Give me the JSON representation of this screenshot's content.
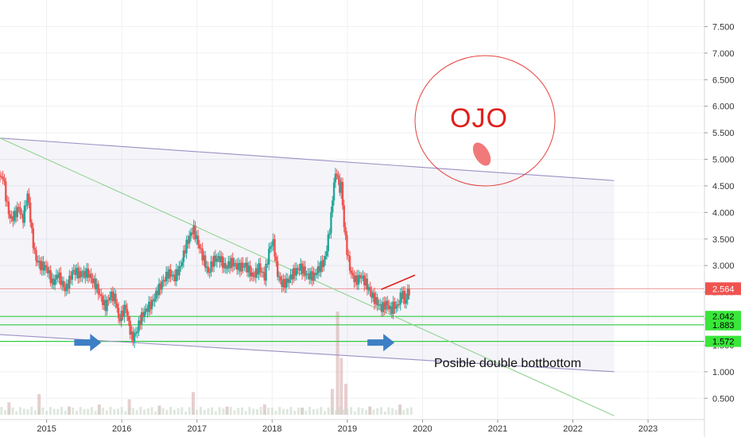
{
  "chart_data": {
    "type": "candlestick",
    "title": "",
    "xlabel": "",
    "ylabel": "",
    "x_tick_labels": [
      "2015",
      "2016",
      "2017",
      "2018",
      "2019",
      "2020",
      "2021",
      "2022",
      "2023"
    ],
    "y_tick_labels": [
      "0.500",
      "1.000",
      "1.500",
      "2.000",
      "2.500",
      "3.000",
      "3.500",
      "4.000",
      "4.500",
      "5.000",
      "5.500",
      "6.000",
      "6.500",
      "7.000",
      "7.500"
    ],
    "y_ticks": [
      0.5,
      1.0,
      1.5,
      2.0,
      2.5,
      3.0,
      3.5,
      4.0,
      4.5,
      5.0,
      5.5,
      6.0,
      6.5,
      7.0,
      7.5
    ],
    "x_range": [
      2014.38,
      2023.75
    ],
    "ylim": [
      0.1,
      8.0
    ],
    "grid": true,
    "price_points": [
      {
        "t": 2014.38,
        "v": 4.7
      },
      {
        "t": 2014.42,
        "v": 4.75
      },
      {
        "t": 2014.47,
        "v": 4.2
      },
      {
        "t": 2014.52,
        "v": 3.85
      },
      {
        "t": 2014.58,
        "v": 3.9
      },
      {
        "t": 2014.63,
        "v": 4.05
      },
      {
        "t": 2014.68,
        "v": 3.8
      },
      {
        "t": 2014.75,
        "v": 4.4
      },
      {
        "t": 2014.8,
        "v": 3.7
      },
      {
        "t": 2014.85,
        "v": 3.2
      },
      {
        "t": 2014.92,
        "v": 3.0
      },
      {
        "t": 2015.0,
        "v": 2.9
      },
      {
        "t": 2015.08,
        "v": 2.6
      },
      {
        "t": 2015.15,
        "v": 2.85
      },
      {
        "t": 2015.25,
        "v": 2.6
      },
      {
        "t": 2015.35,
        "v": 2.9
      },
      {
        "t": 2015.45,
        "v": 2.75
      },
      {
        "t": 2015.55,
        "v": 2.85
      },
      {
        "t": 2015.65,
        "v": 2.7
      },
      {
        "t": 2015.72,
        "v": 2.45
      },
      {
        "t": 2015.78,
        "v": 2.2
      },
      {
        "t": 2015.85,
        "v": 2.4
      },
      {
        "t": 2015.92,
        "v": 2.3
      },
      {
        "t": 2015.96,
        "v": 1.95
      },
      {
        "t": 2016.0,
        "v": 2.1
      },
      {
        "t": 2016.05,
        "v": 2.3
      },
      {
        "t": 2016.1,
        "v": 1.9
      },
      {
        "t": 2016.14,
        "v": 1.65
      },
      {
        "t": 2016.2,
        "v": 1.75
      },
      {
        "t": 2016.25,
        "v": 1.95
      },
      {
        "t": 2016.32,
        "v": 2.1
      },
      {
        "t": 2016.4,
        "v": 2.3
      },
      {
        "t": 2016.48,
        "v": 2.6
      },
      {
        "t": 2016.55,
        "v": 2.75
      },
      {
        "t": 2016.62,
        "v": 2.85
      },
      {
        "t": 2016.7,
        "v": 2.7
      },
      {
        "t": 2016.78,
        "v": 2.95
      },
      {
        "t": 2016.85,
        "v": 3.4
      },
      {
        "t": 2016.9,
        "v": 3.6
      },
      {
        "t": 2016.95,
        "v": 3.75
      },
      {
        "t": 2017.0,
        "v": 3.5
      },
      {
        "t": 2017.08,
        "v": 3.1
      },
      {
        "t": 2017.15,
        "v": 2.8
      },
      {
        "t": 2017.22,
        "v": 3.1
      },
      {
        "t": 2017.3,
        "v": 3.2
      },
      {
        "t": 2017.38,
        "v": 3.0
      },
      {
        "t": 2017.45,
        "v": 3.05
      },
      {
        "t": 2017.55,
        "v": 2.9
      },
      {
        "t": 2017.65,
        "v": 3.0
      },
      {
        "t": 2017.75,
        "v": 2.85
      },
      {
        "t": 2017.82,
        "v": 3.0
      },
      {
        "t": 2017.9,
        "v": 2.75
      },
      {
        "t": 2017.97,
        "v": 3.3
      },
      {
        "t": 2018.02,
        "v": 3.4
      },
      {
        "t": 2018.06,
        "v": 2.9
      },
      {
        "t": 2018.12,
        "v": 2.7
      },
      {
        "t": 2018.2,
        "v": 2.75
      },
      {
        "t": 2018.28,
        "v": 2.85
      },
      {
        "t": 2018.38,
        "v": 2.9
      },
      {
        "t": 2018.46,
        "v": 2.8
      },
      {
        "t": 2018.55,
        "v": 2.85
      },
      {
        "t": 2018.62,
        "v": 3.0
      },
      {
        "t": 2018.7,
        "v": 3.1
      },
      {
        "t": 2018.74,
        "v": 3.4
      },
      {
        "t": 2018.78,
        "v": 3.8
      },
      {
        "t": 2018.82,
        "v": 4.5
      },
      {
        "t": 2018.86,
        "v": 4.75
      },
      {
        "t": 2018.89,
        "v": 4.4
      },
      {
        "t": 2018.92,
        "v": 4.55
      },
      {
        "t": 2018.95,
        "v": 3.9
      },
      {
        "t": 2018.98,
        "v": 3.5
      },
      {
        "t": 2019.02,
        "v": 3.1
      },
      {
        "t": 2019.06,
        "v": 2.85
      },
      {
        "t": 2019.12,
        "v": 2.7
      },
      {
        "t": 2019.18,
        "v": 2.75
      },
      {
        "t": 2019.25,
        "v": 2.6
      },
      {
        "t": 2019.32,
        "v": 2.45
      },
      {
        "t": 2019.4,
        "v": 2.35
      },
      {
        "t": 2019.46,
        "v": 2.25
      },
      {
        "t": 2019.52,
        "v": 2.3
      },
      {
        "t": 2019.58,
        "v": 2.1
      },
      {
        "t": 2019.62,
        "v": 2.2
      },
      {
        "t": 2019.66,
        "v": 2.15
      },
      {
        "t": 2019.7,
        "v": 2.35
      },
      {
        "t": 2019.74,
        "v": 2.5
      },
      {
        "t": 2019.77,
        "v": 2.3
      },
      {
        "t": 2019.8,
        "v": 2.55
      },
      {
        "t": 2019.84,
        "v": 2.6
      }
    ],
    "volume_bars": [
      {
        "t": 2014.5,
        "v": 0.12
      },
      {
        "t": 2014.9,
        "v": 0.2
      },
      {
        "t": 2015.3,
        "v": 0.08
      },
      {
        "t": 2015.7,
        "v": 0.1
      },
      {
        "t": 2016.1,
        "v": 0.15
      },
      {
        "t": 2016.5,
        "v": 0.09
      },
      {
        "t": 2016.95,
        "v": 0.22
      },
      {
        "t": 2017.4,
        "v": 0.08
      },
      {
        "t": 2017.9,
        "v": 0.1
      },
      {
        "t": 2018.4,
        "v": 0.07
      },
      {
        "t": 2018.8,
        "v": 0.25
      },
      {
        "t": 2018.87,
        "v": 1.0
      },
      {
        "t": 2018.92,
        "v": 0.55
      },
      {
        "t": 2018.98,
        "v": 0.3
      },
      {
        "t": 2019.3,
        "v": 0.08
      },
      {
        "t": 2019.7,
        "v": 0.1
      }
    ],
    "support_levels": [
      {
        "label": "2.042",
        "value": 2.042
      },
      {
        "label": "1.883",
        "value": 1.883
      },
      {
        "label": "1.572",
        "value": 1.572
      }
    ],
    "last_price": {
      "label": "2.564",
      "value": 2.564
    },
    "lines": [
      {
        "kind": "channel-top",
        "color": "#9d8fc4",
        "from": {
          "t": 2014.38,
          "v": 5.4
        },
        "to": {
          "t": 2022.55,
          "v": 4.6
        }
      },
      {
        "kind": "channel-bottom",
        "color": "#9d8fc4",
        "from": {
          "t": 2014.38,
          "v": 1.7
        },
        "to": {
          "t": 2022.55,
          "v": 1.0
        }
      },
      {
        "kind": "diagonal-trend",
        "color": "#8fd48f",
        "from": {
          "t": 2014.38,
          "v": 5.4
        },
        "to": {
          "t": 2022.55,
          "v": 0.17
        }
      },
      {
        "kind": "short-trend",
        "color": "#e0201c",
        "from": {
          "t": 2019.45,
          "v": 2.55
        },
        "to": {
          "t": 2019.9,
          "v": 2.82
        }
      }
    ],
    "annotations": [
      {
        "text": "OJO",
        "kind": "callout"
      },
      {
        "text": "Posible double bottbottom",
        "kind": "note"
      }
    ],
    "arrow_markers": [
      {
        "t": 2015.6,
        "v": 1.55,
        "color": "#3d7fc4"
      },
      {
        "t": 2019.5,
        "v": 1.55,
        "color": "#3d7fc4"
      }
    ]
  }
}
